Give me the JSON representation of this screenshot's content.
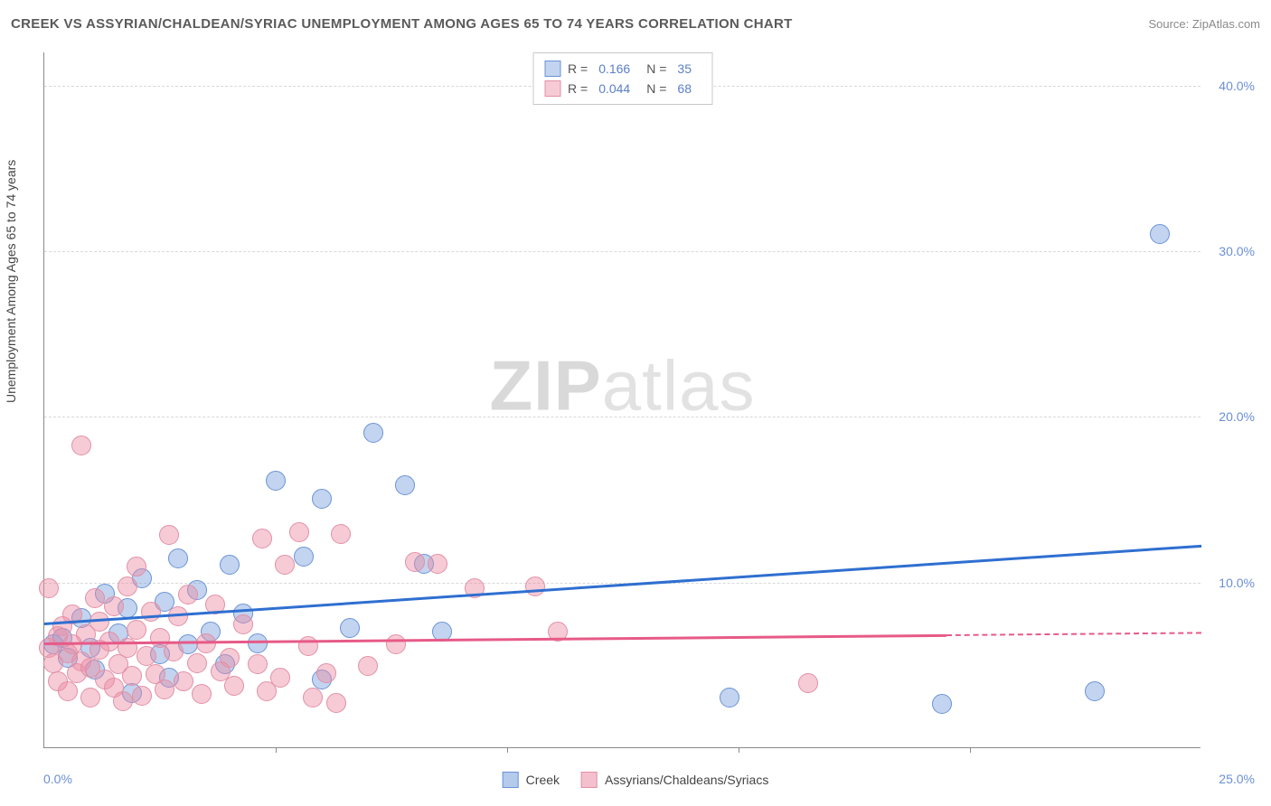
{
  "title": "CREEK VS ASSYRIAN/CHALDEAN/SYRIAC UNEMPLOYMENT AMONG AGES 65 TO 74 YEARS CORRELATION CHART",
  "source": "Source: ZipAtlas.com",
  "watermark_bold": "ZIP",
  "watermark_light": "atlas",
  "y_axis_label": "Unemployment Among Ages 65 to 74 years",
  "axes": {
    "xmin": 0,
    "xmax": 25,
    "ymin": 0,
    "ymax": 42,
    "x_tick_step": 5,
    "y_ticks": [
      10,
      20,
      30,
      40
    ],
    "x_label_min": "0.0%",
    "x_label_max": "25.0%",
    "y_labels": [
      "10.0%",
      "20.0%",
      "30.0%",
      "40.0%"
    ],
    "axis_val_color": "#6b8fd4",
    "grid_color": "#d8d8d8",
    "text_color": "#444444"
  },
  "series": [
    {
      "name": "Creek",
      "fill": "rgba(120,160,220,0.45)",
      "stroke": "#6b93d6",
      "line_color": "#2f6fd0",
      "r_value": "0.166",
      "n_value": "35",
      "marker_radius": 11,
      "trend": {
        "x0": 0,
        "y0": 7.6,
        "x1": 25,
        "y1": 12.3,
        "extend_from_x": null
      },
      "points": [
        [
          0.2,
          6.2
        ],
        [
          0.4,
          6.6
        ],
        [
          0.5,
          5.4
        ],
        [
          0.8,
          7.8
        ],
        [
          1.0,
          6.0
        ],
        [
          1.1,
          4.7
        ],
        [
          1.3,
          9.3
        ],
        [
          1.6,
          6.9
        ],
        [
          1.8,
          8.4
        ],
        [
          1.9,
          3.3
        ],
        [
          2.1,
          10.2
        ],
        [
          2.5,
          5.6
        ],
        [
          2.6,
          8.8
        ],
        [
          2.7,
          4.2
        ],
        [
          2.9,
          11.4
        ],
        [
          3.1,
          6.2
        ],
        [
          3.3,
          9.5
        ],
        [
          3.6,
          7.0
        ],
        [
          3.9,
          5.0
        ],
        [
          4.0,
          11.0
        ],
        [
          4.3,
          8.1
        ],
        [
          4.6,
          6.3
        ],
        [
          5.0,
          16.1
        ],
        [
          5.6,
          11.5
        ],
        [
          6.0,
          15.0
        ],
        [
          6.0,
          4.1
        ],
        [
          6.6,
          7.2
        ],
        [
          7.1,
          19.0
        ],
        [
          7.8,
          15.8
        ],
        [
          8.2,
          11.1
        ],
        [
          8.6,
          7.0
        ],
        [
          14.8,
          3.0
        ],
        [
          19.4,
          2.6
        ],
        [
          22.7,
          3.4
        ],
        [
          24.1,
          31.0
        ]
      ]
    },
    {
      "name": "Assyrians/Chaldeans/Syriacs",
      "fill": "rgba(235,140,165,0.45)",
      "stroke": "#e290a6",
      "line_color": "#e75a87",
      "r_value": "0.044",
      "n_value": "68",
      "marker_radius": 11,
      "trend": {
        "x0": 0,
        "y0": 6.4,
        "x1": 19.5,
        "y1": 6.9,
        "extend_from_x": 19.5
      },
      "points": [
        [
          0.1,
          6.0
        ],
        [
          0.1,
          9.6
        ],
        [
          0.2,
          5.1
        ],
        [
          0.3,
          6.7
        ],
        [
          0.3,
          4.0
        ],
        [
          0.4,
          7.3
        ],
        [
          0.5,
          5.7
        ],
        [
          0.5,
          3.4
        ],
        [
          0.6,
          8.0
        ],
        [
          0.6,
          6.2
        ],
        [
          0.7,
          4.5
        ],
        [
          0.8,
          18.2
        ],
        [
          0.8,
          5.2
        ],
        [
          0.9,
          6.8
        ],
        [
          1.0,
          4.8
        ],
        [
          1.0,
          3.0
        ],
        [
          1.1,
          9.0
        ],
        [
          1.2,
          5.9
        ],
        [
          1.2,
          7.6
        ],
        [
          1.3,
          4.1
        ],
        [
          1.4,
          6.4
        ],
        [
          1.5,
          3.6
        ],
        [
          1.5,
          8.5
        ],
        [
          1.6,
          5.0
        ],
        [
          1.7,
          2.8
        ],
        [
          1.8,
          9.7
        ],
        [
          1.8,
          6.0
        ],
        [
          1.9,
          4.3
        ],
        [
          2.0,
          10.9
        ],
        [
          2.0,
          7.1
        ],
        [
          2.1,
          3.1
        ],
        [
          2.2,
          5.5
        ],
        [
          2.3,
          8.2
        ],
        [
          2.4,
          4.4
        ],
        [
          2.5,
          6.6
        ],
        [
          2.6,
          3.5
        ],
        [
          2.7,
          12.8
        ],
        [
          2.8,
          5.8
        ],
        [
          2.9,
          7.9
        ],
        [
          3.0,
          4.0
        ],
        [
          3.1,
          9.2
        ],
        [
          3.3,
          5.1
        ],
        [
          3.4,
          3.2
        ],
        [
          3.5,
          6.3
        ],
        [
          3.7,
          8.6
        ],
        [
          3.8,
          4.6
        ],
        [
          4.0,
          5.4
        ],
        [
          4.1,
          3.7
        ],
        [
          4.3,
          7.4
        ],
        [
          4.6,
          5.0
        ],
        [
          4.7,
          12.6
        ],
        [
          4.8,
          3.4
        ],
        [
          5.1,
          4.2
        ],
        [
          5.2,
          11.0
        ],
        [
          5.5,
          13.0
        ],
        [
          5.7,
          6.1
        ],
        [
          5.8,
          3.0
        ],
        [
          6.1,
          4.5
        ],
        [
          6.3,
          2.7
        ],
        [
          6.4,
          12.9
        ],
        [
          7.0,
          4.9
        ],
        [
          7.6,
          6.2
        ],
        [
          8.0,
          11.2
        ],
        [
          8.5,
          11.1
        ],
        [
          9.3,
          9.6
        ],
        [
          10.6,
          9.7
        ],
        [
          11.1,
          7.0
        ],
        [
          16.5,
          3.9
        ]
      ]
    }
  ],
  "legend_bottom": [
    {
      "label": "Creek",
      "fill": "rgba(120,160,220,0.55)",
      "stroke": "#6b93d6"
    },
    {
      "label": "Assyrians/Chaldeans/Syriacs",
      "fill": "rgba(235,140,165,0.55)",
      "stroke": "#e290a6"
    }
  ]
}
